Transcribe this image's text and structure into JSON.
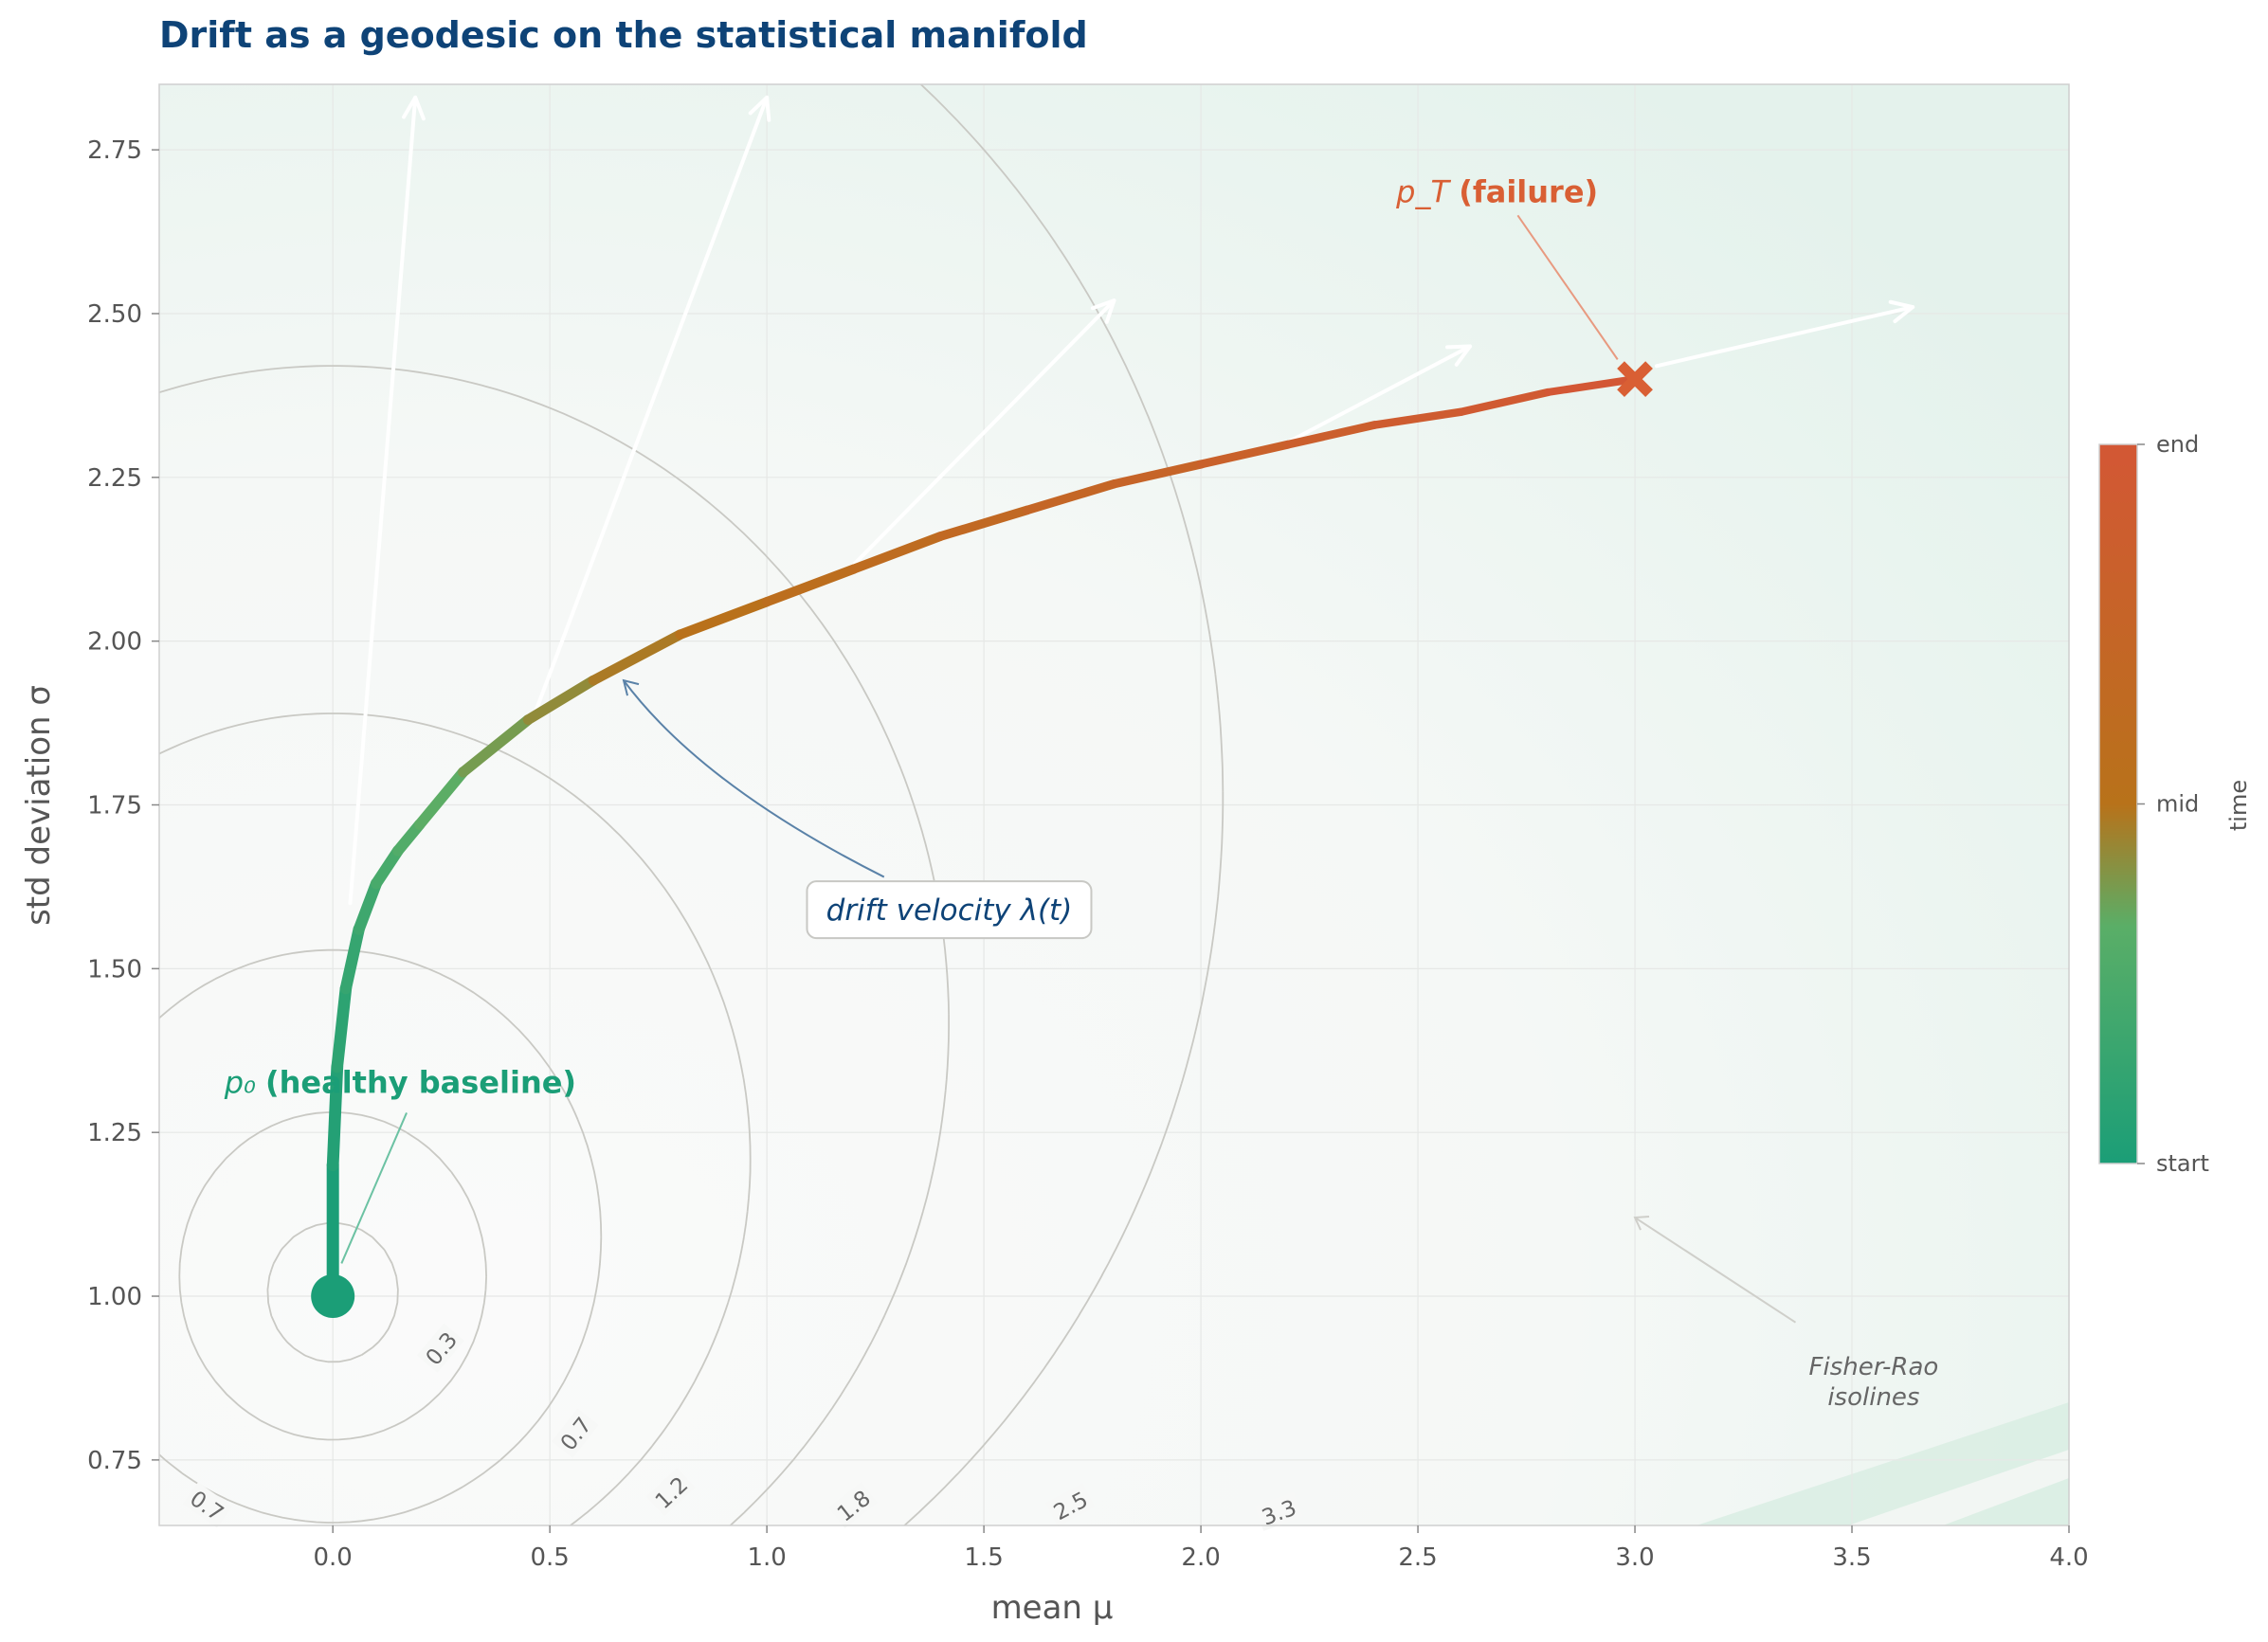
{
  "chart_data": {
    "type": "line",
    "title": "Drift as a geodesic on the statistical manifold",
    "xlabel": "mean  μ",
    "ylabel": "std deviation  σ",
    "xlim": [
      -0.4,
      4.0
    ],
    "ylim": [
      0.65,
      2.85
    ],
    "xticks": [
      "0.0",
      "0.5",
      "1.0",
      "1.5",
      "2.0",
      "2.5",
      "3.0",
      "3.5",
      "4.0"
    ],
    "yticks": [
      "0.75",
      "1.00",
      "1.25",
      "1.50",
      "1.75",
      "2.00",
      "2.25",
      "2.50",
      "2.75"
    ],
    "grid": true,
    "series": [
      {
        "x": [
          0.0,
          0.0,
          0.01,
          0.03,
          0.06,
          0.1,
          0.15,
          0.2,
          0.3,
          0.45,
          0.6,
          0.8,
          1.0,
          1.2,
          1.4,
          1.6,
          1.8,
          2.0,
          2.2,
          2.4,
          2.6,
          2.8,
          3.0
        ],
        "y": [
          1.0,
          1.2,
          1.35,
          1.47,
          1.56,
          1.63,
          1.68,
          1.72,
          1.8,
          1.88,
          1.94,
          2.01,
          2.06,
          2.11,
          2.16,
          2.2,
          2.24,
          2.27,
          2.3,
          2.33,
          2.35,
          2.38,
          2.4
        ]
      }
    ],
    "start_point": {
      "x": 0.0,
      "y": 1.0,
      "label_math": "p₀",
      "label": "(healthy baseline)",
      "color": "#1b9e77"
    },
    "end_point": {
      "x": 3.0,
      "y": 2.4,
      "label_math": "p_T",
      "label": "(failure)",
      "color": "#d95f34"
    },
    "velocity_arrows": [
      {
        "x0": 0.04,
        "y0": 1.6,
        "x1": 0.19,
        "y1": 2.83
      },
      {
        "x0": 0.46,
        "y0": 1.88,
        "x1": 1.0,
        "y1": 2.83
      },
      {
        "x0": 1.19,
        "y0": 2.11,
        "x1": 1.8,
        "y1": 2.52
      },
      {
        "x0": 2.19,
        "y0": 2.3,
        "x1": 2.62,
        "y1": 2.45
      },
      {
        "x0": 3.05,
        "y0": 2.42,
        "x1": 3.64,
        "y1": 2.51
      }
    ],
    "contours": [
      {
        "label": "0.3",
        "level": 0.3
      },
      {
        "label": "0.7",
        "level": 0.7
      },
      {
        "label": "1.2",
        "level": 1.2
      },
      {
        "label": "1.8",
        "level": 1.8
      },
      {
        "label": "2.5",
        "level": 2.5
      },
      {
        "label": "3.3",
        "level": 3.3
      }
    ],
    "annotations": {
      "velocity": "drift velocity  λ(t)",
      "isolines": [
        "Fisher-Rao",
        "isolines"
      ]
    },
    "colorbar": {
      "label": "time",
      "ticks": [
        "start",
        "mid",
        "end"
      ],
      "colors": [
        "#1b9e77",
        "#5aae67",
        "#b8721a",
        "#d35735"
      ]
    }
  }
}
